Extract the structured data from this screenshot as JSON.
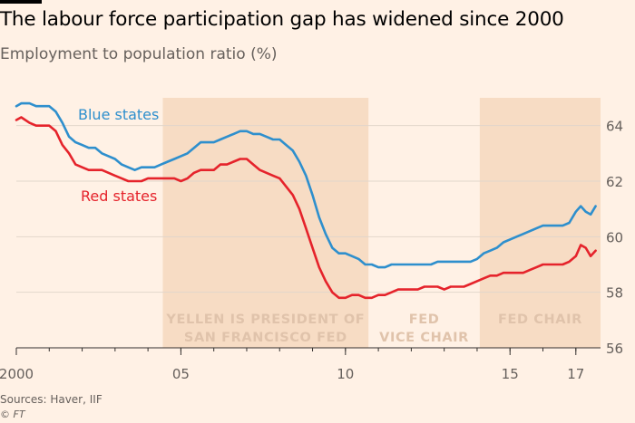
{
  "title": "The labour force participation gap has widened since 2000",
  "subtitle": "Employment to population ratio (%)",
  "source": "Sources: Haver, IIF",
  "credit": "© FT",
  "colors": {
    "background": "#fff1e5",
    "shade": "#f7dcc4",
    "shade_text": "#e0c3ab",
    "blue": "#2e8fcd",
    "red": "#e5232b",
    "axis_text": "#66605c",
    "grid": "#e2d6cb"
  },
  "chart_data": {
    "type": "line",
    "title": "The labour force participation gap has widened since 2000",
    "subtitle": "Employment to population ratio (%)",
    "xlabel": "",
    "ylabel": "",
    "xlim": [
      2000.0,
      2017.75
    ],
    "ylim": [
      56,
      65
    ],
    "yticks": [
      56,
      58,
      60,
      62,
      64
    ],
    "xticks": [
      {
        "value": 2000,
        "label": "2000"
      },
      {
        "value": 2005,
        "label": "05"
      },
      {
        "value": 2010,
        "label": "10"
      },
      {
        "value": 2015,
        "label": "15"
      },
      {
        "value": 2017,
        "label": "17"
      }
    ],
    "grid": true,
    "legend": "inline labels",
    "shaded_periods": [
      {
        "start": 2004.45,
        "end": 2010.7,
        "label_lines": [
          "YELLEN IS PRESIDENT OF",
          "SAN FRANCISCO FED"
        ]
      },
      {
        "start": 2010.7,
        "end": 2014.08,
        "label_lines": [
          "FED",
          "VICE CHAIR"
        ],
        "unshaded": true
      },
      {
        "start": 2014.08,
        "end": 2017.75,
        "label_lines": [
          "FED CHAIR"
        ]
      }
    ],
    "series": [
      {
        "name": "Blue states",
        "color": "#2e8fcd",
        "x": [
          2000.0,
          2000.15,
          2000.4,
          2000.6,
          2000.8,
          2001.0,
          2001.2,
          2001.4,
          2001.6,
          2001.8,
          2002.0,
          2002.2,
          2002.4,
          2002.6,
          2002.8,
          2003.0,
          2003.2,
          2003.4,
          2003.6,
          2003.8,
          2004.0,
          2004.2,
          2004.4,
          2004.6,
          2004.8,
          2005.0,
          2005.2,
          2005.4,
          2005.6,
          2005.8,
          2006.0,
          2006.2,
          2006.4,
          2006.6,
          2006.8,
          2007.0,
          2007.2,
          2007.4,
          2007.6,
          2007.8,
          2008.0,
          2008.2,
          2008.4,
          2008.6,
          2008.8,
          2009.0,
          2009.2,
          2009.4,
          2009.6,
          2009.8,
          2010.0,
          2010.2,
          2010.4,
          2010.6,
          2010.8,
          2011.0,
          2011.2,
          2011.4,
          2011.6,
          2011.8,
          2012.0,
          2012.2,
          2012.4,
          2012.6,
          2012.8,
          2013.0,
          2013.2,
          2013.4,
          2013.6,
          2013.8,
          2014.0,
          2014.2,
          2014.4,
          2014.6,
          2014.8,
          2015.0,
          2015.2,
          2015.4,
          2015.6,
          2015.8,
          2016.0,
          2016.2,
          2016.4,
          2016.6,
          2016.8,
          2017.0,
          2017.15,
          2017.3,
          2017.45,
          2017.6
        ],
        "values": [
          64.7,
          64.8,
          64.8,
          64.7,
          64.7,
          64.7,
          64.5,
          64.1,
          63.6,
          63.4,
          63.3,
          63.2,
          63.2,
          63.0,
          62.9,
          62.8,
          62.6,
          62.5,
          62.4,
          62.5,
          62.5,
          62.5,
          62.6,
          62.7,
          62.8,
          62.9,
          63.0,
          63.2,
          63.4,
          63.4,
          63.4,
          63.5,
          63.6,
          63.7,
          63.8,
          63.8,
          63.7,
          63.7,
          63.6,
          63.5,
          63.5,
          63.3,
          63.1,
          62.7,
          62.2,
          61.5,
          60.7,
          60.1,
          59.6,
          59.4,
          59.4,
          59.3,
          59.2,
          59.0,
          59.0,
          58.9,
          58.9,
          59.0,
          59.0,
          59.0,
          59.0,
          59.0,
          59.0,
          59.0,
          59.1,
          59.1,
          59.1,
          59.1,
          59.1,
          59.1,
          59.2,
          59.4,
          59.5,
          59.6,
          59.8,
          59.9,
          60.0,
          60.1,
          60.2,
          60.3,
          60.4,
          60.4,
          60.4,
          60.4,
          60.5,
          60.9,
          61.1,
          60.9,
          60.8,
          61.1
        ]
      },
      {
        "name": "Red states",
        "color": "#e5232b",
        "x": [
          2000.0,
          2000.15,
          2000.4,
          2000.6,
          2000.8,
          2001.0,
          2001.2,
          2001.4,
          2001.6,
          2001.8,
          2002.0,
          2002.2,
          2002.4,
          2002.6,
          2002.8,
          2003.0,
          2003.2,
          2003.4,
          2003.6,
          2003.8,
          2004.0,
          2004.2,
          2004.4,
          2004.6,
          2004.8,
          2005.0,
          2005.2,
          2005.4,
          2005.6,
          2005.8,
          2006.0,
          2006.2,
          2006.4,
          2006.6,
          2006.8,
          2007.0,
          2007.2,
          2007.4,
          2007.6,
          2007.8,
          2008.0,
          2008.2,
          2008.4,
          2008.6,
          2008.8,
          2009.0,
          2009.2,
          2009.4,
          2009.6,
          2009.8,
          2010.0,
          2010.2,
          2010.4,
          2010.6,
          2010.8,
          2011.0,
          2011.2,
          2011.4,
          2011.6,
          2011.8,
          2012.0,
          2012.2,
          2012.4,
          2012.6,
          2012.8,
          2013.0,
          2013.2,
          2013.4,
          2013.6,
          2013.8,
          2014.0,
          2014.2,
          2014.4,
          2014.6,
          2014.8,
          2015.0,
          2015.2,
          2015.4,
          2015.6,
          2015.8,
          2016.0,
          2016.2,
          2016.4,
          2016.6,
          2016.8,
          2017.0,
          2017.15,
          2017.3,
          2017.45,
          2017.6
        ],
        "values": [
          64.2,
          64.3,
          64.1,
          64.0,
          64.0,
          64.0,
          63.8,
          63.3,
          63.0,
          62.6,
          62.5,
          62.4,
          62.4,
          62.4,
          62.3,
          62.2,
          62.1,
          62.0,
          62.0,
          62.0,
          62.1,
          62.1,
          62.1,
          62.1,
          62.1,
          62.0,
          62.1,
          62.3,
          62.4,
          62.4,
          62.4,
          62.6,
          62.6,
          62.7,
          62.8,
          62.8,
          62.6,
          62.4,
          62.3,
          62.2,
          62.1,
          61.8,
          61.5,
          61.0,
          60.3,
          59.6,
          58.9,
          58.4,
          58.0,
          57.8,
          57.8,
          57.9,
          57.9,
          57.8,
          57.8,
          57.9,
          57.9,
          58.0,
          58.1,
          58.1,
          58.1,
          58.1,
          58.2,
          58.2,
          58.2,
          58.1,
          58.2,
          58.2,
          58.2,
          58.3,
          58.4,
          58.5,
          58.6,
          58.6,
          58.7,
          58.7,
          58.7,
          58.7,
          58.8,
          58.9,
          59.0,
          59.0,
          59.0,
          59.0,
          59.1,
          59.3,
          59.7,
          59.6,
          59.3,
          59.5
        ]
      }
    ],
    "series_labels": [
      {
        "series": "Blue states",
        "text": "Blue states"
      },
      {
        "series": "Red states",
        "text": "Red states"
      }
    ]
  }
}
